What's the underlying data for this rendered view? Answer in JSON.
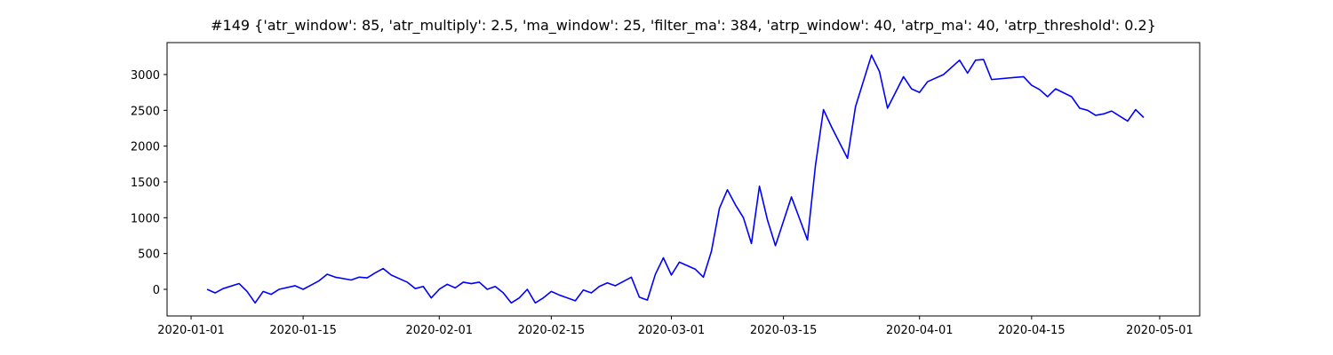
{
  "chart_data": {
    "type": "line",
    "title": "#149 {'atr_window': 85, 'atr_multiply': 2.5, 'ma_window': 25, 'filter_ma': 384, 'atrp_window': 40, 'atrp_ma': 40, 'atrp_threshold': 0.2}",
    "x": [
      "2020-01-03",
      "2020-01-04",
      "2020-01-05",
      "2020-01-07",
      "2020-01-08",
      "2020-01-09",
      "2020-01-10",
      "2020-01-11",
      "2020-01-12",
      "2020-01-14",
      "2020-01-15",
      "2020-01-16",
      "2020-01-17",
      "2020-01-18",
      "2020-01-19",
      "2020-01-21",
      "2020-01-22",
      "2020-01-23",
      "2020-01-24",
      "2020-01-25",
      "2020-01-26",
      "2020-01-28",
      "2020-01-29",
      "2020-01-30",
      "2020-01-31",
      "2020-02-01",
      "2020-02-02",
      "2020-02-03",
      "2020-02-04",
      "2020-02-05",
      "2020-02-06",
      "2020-02-07",
      "2020-02-08",
      "2020-02-09",
      "2020-02-10",
      "2020-02-11",
      "2020-02-12",
      "2020-02-13",
      "2020-02-14",
      "2020-02-15",
      "2020-02-16",
      "2020-02-18",
      "2020-02-19",
      "2020-02-20",
      "2020-02-21",
      "2020-02-22",
      "2020-02-23",
      "2020-02-25",
      "2020-02-26",
      "2020-02-27",
      "2020-02-28",
      "2020-02-29",
      "2020-03-01",
      "2020-03-02",
      "2020-03-03",
      "2020-03-04",
      "2020-03-05",
      "2020-03-06",
      "2020-03-07",
      "2020-03-08",
      "2020-03-09",
      "2020-03-10",
      "2020-03-11",
      "2020-03-12",
      "2020-03-13",
      "2020-03-14",
      "2020-03-16",
      "2020-03-17",
      "2020-03-18",
      "2020-03-19",
      "2020-03-20",
      "2020-03-21",
      "2020-03-23",
      "2020-03-24",
      "2020-03-26",
      "2020-03-27",
      "2020-03-28",
      "2020-03-30",
      "2020-03-31",
      "2020-04-01",
      "2020-04-02",
      "2020-04-04",
      "2020-04-06",
      "2020-04-07",
      "2020-04-08",
      "2020-04-09",
      "2020-04-10",
      "2020-04-14",
      "2020-04-15",
      "2020-04-16",
      "2020-04-17",
      "2020-04-18",
      "2020-04-20",
      "2020-04-21",
      "2020-04-22",
      "2020-04-23",
      "2020-04-24",
      "2020-04-25",
      "2020-04-26",
      "2020-04-27",
      "2020-04-28",
      "2020-04-29"
    ],
    "values": [
      0,
      -50,
      10,
      80,
      -30,
      -190,
      -30,
      -70,
      0,
      50,
      0,
      60,
      120,
      210,
      170,
      130,
      170,
      160,
      230,
      290,
      200,
      100,
      10,
      40,
      -120,
      0,
      70,
      20,
      100,
      80,
      100,
      0,
      40,
      -50,
      -190,
      -120,
      0,
      -190,
      -120,
      -30,
      -80,
      -160,
      -10,
      -50,
      40,
      90,
      50,
      170,
      -110,
      -150,
      210,
      440,
      200,
      380,
      330,
      280,
      170,
      530,
      1130,
      1390,
      1180,
      1000,
      640,
      1440,
      970,
      610,
      1290,
      990,
      690,
      1730,
      2510,
      2270,
      1830,
      2550,
      3270,
      3040,
      2530,
      2970,
      2800,
      2750,
      2900,
      3000,
      3200,
      3020,
      3200,
      3210,
      2930,
      2970,
      2850,
      2790,
      2690,
      2800,
      2690,
      2530,
      2500,
      2430,
      2450,
      2490,
      2420,
      2350,
      2510,
      2400
    ],
    "color": "#0000ff",
    "xlim": [
      "2019-12-29",
      "2020-05-06"
    ],
    "xticks": [
      "2020-01-01",
      "2020-01-15",
      "2020-02-01",
      "2020-02-15",
      "2020-03-01",
      "2020-03-15",
      "2020-04-01",
      "2020-04-15",
      "2020-05-01"
    ],
    "ylim": [
      -372,
      3446
    ],
    "yticks": [
      0,
      500,
      1000,
      1500,
      2000,
      2500,
      3000
    ],
    "grid": false
  }
}
